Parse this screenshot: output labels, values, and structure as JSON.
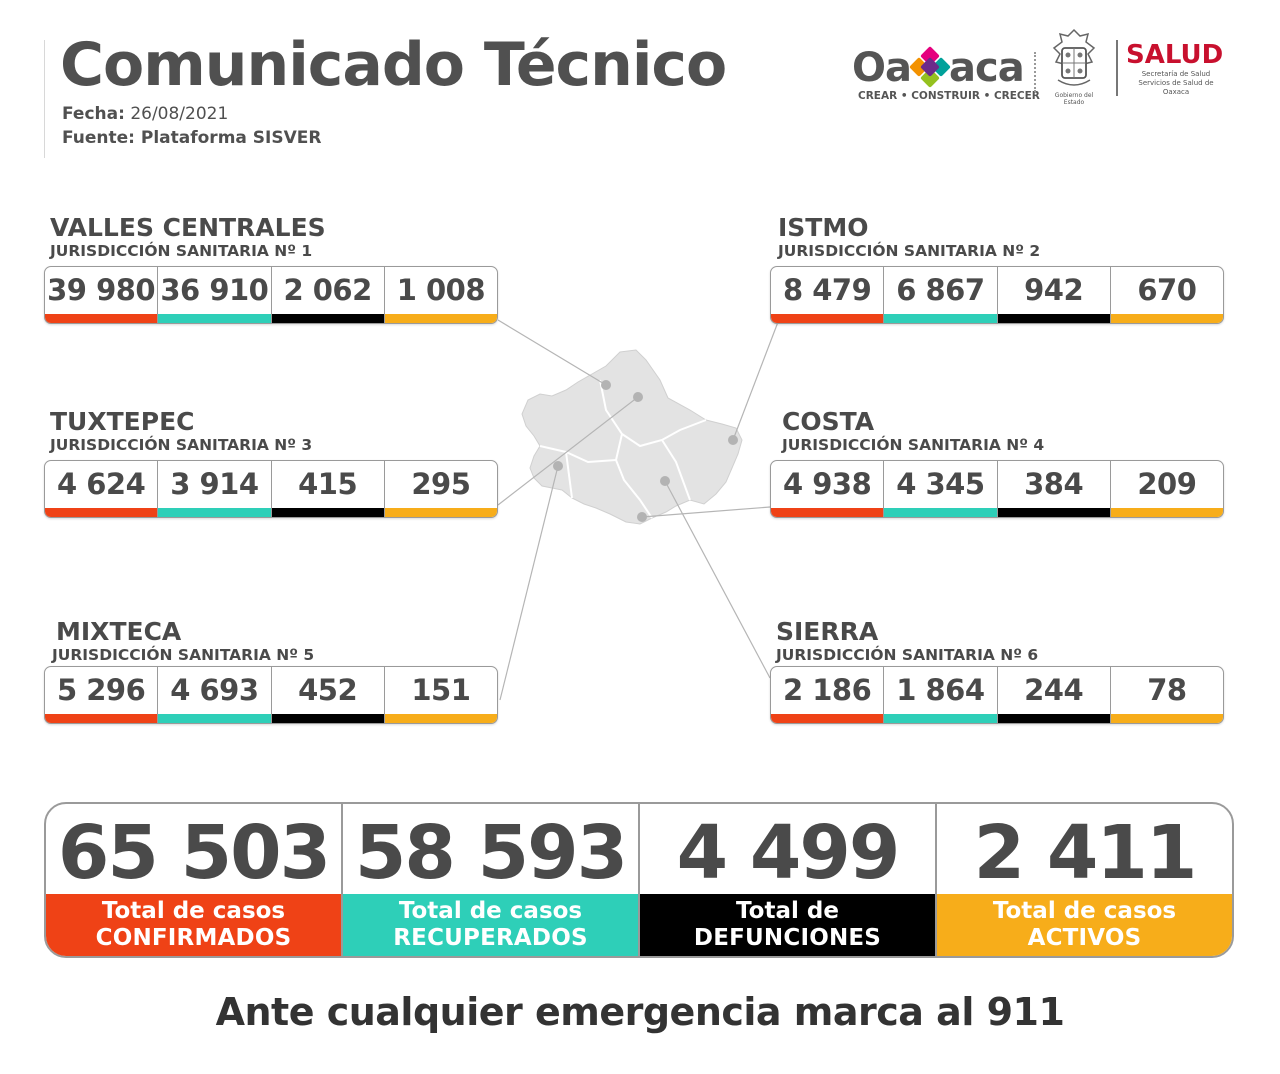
{
  "header": {
    "title": "Comunicado Técnico",
    "date_label": "Fecha:",
    "date_value": "26/08/2021",
    "source": "Fuente: Plataforma SISVER"
  },
  "logos": {
    "oaxaca_word_left": "Oa",
    "oaxaca_word_right": "aca",
    "oaxaca_tagline": "CREAR • CONSTRUIR • CRECER",
    "seal_caption": "Gobierno del Estado",
    "salud_title": "SALUD",
    "salud_line1": "Secretaría de Salud",
    "salud_line2": "Servicios de Salud de Oaxaca"
  },
  "colors": {
    "confirmados": "#ef4216",
    "recuperados": "#2ecfb8",
    "defunciones": "#000000",
    "activos": "#f7ad1a",
    "text": "#4a4a4a"
  },
  "regions": [
    {
      "name": "VALLES CENTRALES",
      "jurisdiction": "JURISDICCIÓN SANITARIA Nº 1",
      "values": [
        "39 980",
        "36 910",
        "2 062",
        "1 008"
      ]
    },
    {
      "name": "ISTMO",
      "jurisdiction": "JURISDICCIÓN SANITARIA Nº 2",
      "values": [
        "8 479",
        "6 867",
        "942",
        "670"
      ]
    },
    {
      "name": "TUXTEPEC",
      "jurisdiction": "JURISDICCIÓN SANITARIA Nº 3",
      "values": [
        "4 624",
        "3 914",
        "415",
        "295"
      ]
    },
    {
      "name": "COSTA",
      "jurisdiction": "JURISDICCIÓN SANITARIA Nº 4",
      "values": [
        "4 938",
        "4 345",
        "384",
        "209"
      ]
    },
    {
      "name": "MIXTECA",
      "jurisdiction": "JURISDICCIÓN SANITARIA Nº 5",
      "values": [
        "5 296",
        "4 693",
        "452",
        "151"
      ]
    },
    {
      "name": "SIERRA",
      "jurisdiction": "JURISDICCIÓN SANITARIA Nº 6",
      "values": [
        "2 186",
        "1 864",
        "244",
        "78"
      ]
    }
  ],
  "totals": [
    {
      "value": "65 503",
      "line1": "Total de casos",
      "line2": "CONFIRMADOS"
    },
    {
      "value": "58 593",
      "line1": "Total de casos",
      "line2": "RECUPERADOS"
    },
    {
      "value": "4 499",
      "line1": "Total de",
      "line2": "DEFUNCIONES"
    },
    {
      "value": "2 411",
      "line1": "Total de casos",
      "line2": "ACTIVOS"
    }
  ],
  "footer": "Ante cualquier emergencia marca al 911"
}
